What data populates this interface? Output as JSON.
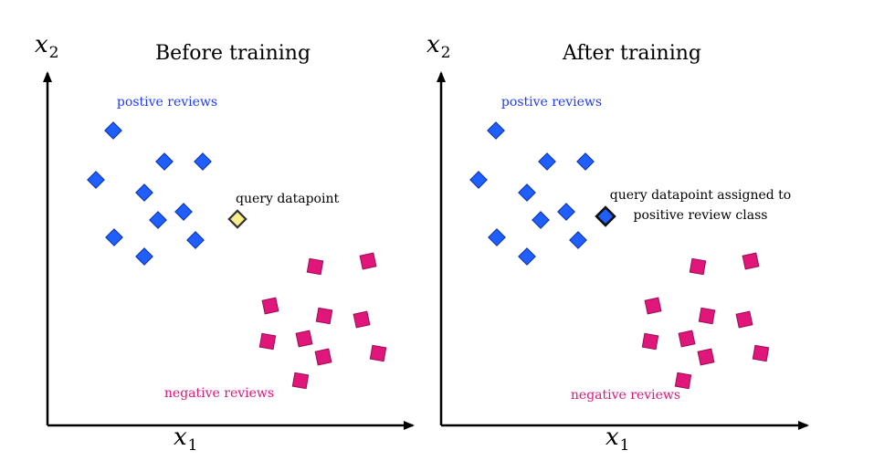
{
  "colors": {
    "positive": "#1f5eff",
    "positive_stroke": "#0a2fa0",
    "negative": "#e0167a",
    "negative_stroke": "#9c0d55",
    "query_before": "#f7ef8a",
    "query_after": "#1f5eff",
    "axis": "#000000"
  },
  "panels": [
    {
      "title": "Before training",
      "y_axis_label": "x",
      "y_axis_sub": "2",
      "x_axis_label": "x",
      "x_axis_sub": "1",
      "positive_label": "postive reviews",
      "negative_label": "negative reviews",
      "query_label_lines": [
        "query datapoint"
      ],
      "query_class": "unassigned",
      "query_icon": "yellow-diamond"
    },
    {
      "title": "After training",
      "y_axis_label": "x",
      "y_axis_sub": "2",
      "x_axis_label": "x",
      "x_axis_sub": "1",
      "positive_label": "postive reviews",
      "negative_label": "negative reviews",
      "query_label_lines": [
        "query datapoint assigned to",
        "positive review class"
      ],
      "query_class": "positive",
      "query_icon": "blue-diamond"
    }
  ]
}
